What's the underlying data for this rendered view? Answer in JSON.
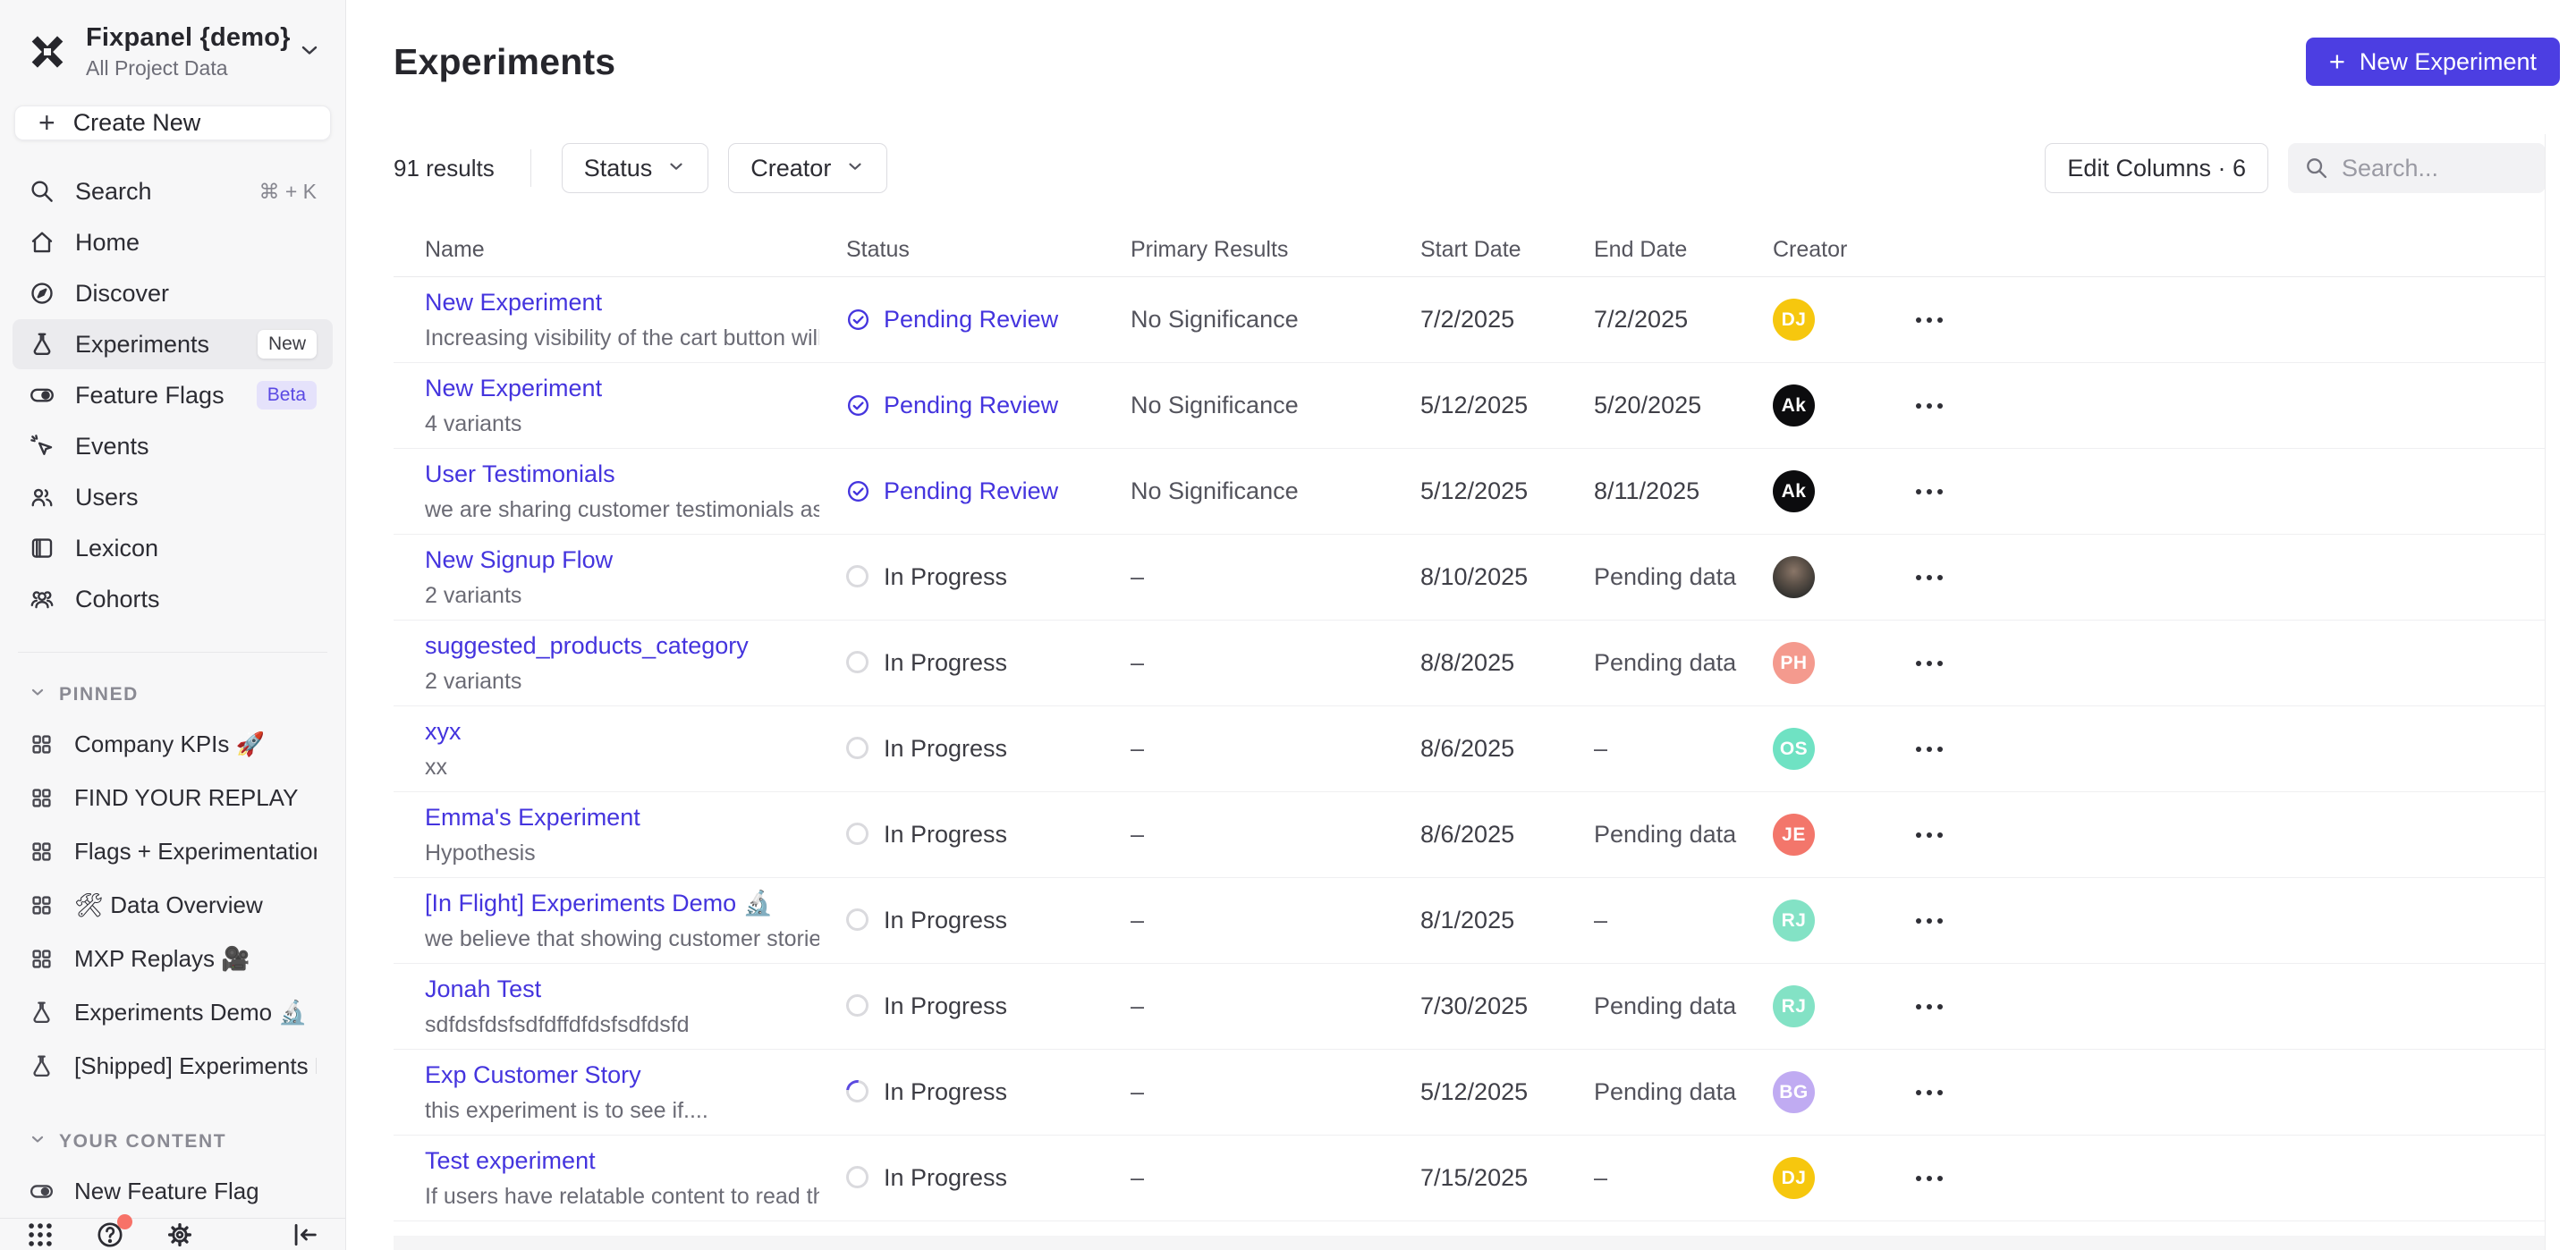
{
  "colors": {
    "accent": "#4c3ee2",
    "link": "#4434de",
    "beta_badge_bg": "#e5e2fb",
    "sidebar_bg": "#f7f7f8"
  },
  "workspace": {
    "name": "Fixpanel {demo}",
    "subtitle": "All Project Data"
  },
  "sidebar": {
    "create_new_label": "Create New",
    "nav": [
      {
        "label": "Search",
        "icon": "search",
        "shortcut": "⌘ + K"
      },
      {
        "label": "Home",
        "icon": "home"
      },
      {
        "label": "Discover",
        "icon": "discover"
      },
      {
        "label": "Experiments",
        "icon": "flask",
        "badge": "New",
        "active": true
      },
      {
        "label": "Feature Flags",
        "icon": "toggle",
        "badge": "Beta"
      },
      {
        "label": "Events",
        "icon": "events"
      },
      {
        "label": "Users",
        "icon": "users"
      },
      {
        "label": "Lexicon",
        "icon": "lexicon"
      },
      {
        "label": "Cohorts",
        "icon": "cohorts"
      }
    ],
    "pinned_header": "PINNED",
    "pinned": [
      {
        "label": "Company KPIs 🚀",
        "icon": "board"
      },
      {
        "label": "FIND YOUR REPLAY",
        "icon": "board"
      },
      {
        "label": "Flags + Experimentation Demo",
        "icon": "board"
      },
      {
        "label": "🛠 Data Overview",
        "icon": "board"
      },
      {
        "label": "MXP Replays 🎥",
        "icon": "board"
      },
      {
        "label": "Experiments Demo 🔬",
        "icon": "flask"
      },
      {
        "label": "[Shipped] Experiments Demo 🖊",
        "icon": "flask"
      }
    ],
    "your_content_header": "YOUR CONTENT",
    "your_content": [
      {
        "label": "New Feature Flag",
        "icon": "toggle"
      }
    ],
    "footer_icons": [
      "apps-grid",
      "help",
      "settings",
      "collapse-sidebar"
    ],
    "help_has_notification": true
  },
  "header": {
    "title": "Experiments",
    "new_button_label": "New Experiment"
  },
  "toolbar": {
    "results": "91 results",
    "filters": [
      "Status",
      "Creator"
    ],
    "edit_columns_label": "Edit Columns · 6",
    "search_placeholder": "Search..."
  },
  "table": {
    "columns": [
      "Name",
      "Status",
      "Primary Results",
      "Start Date",
      "End Date",
      "Creator"
    ],
    "rows": [
      {
        "name": "New Experiment",
        "desc": "Increasing visibility of the cart button will l...",
        "status": "Pending Review",
        "status_type": "review",
        "primary": "No Significance",
        "start": "7/2/2025",
        "end": "7/2/2025",
        "avatar": {
          "text": "DJ",
          "bg": "#f6c70e"
        }
      },
      {
        "name": "New Experiment",
        "desc": "4 variants",
        "status": "Pending Review",
        "status_type": "review",
        "primary": "No Significance",
        "start": "5/12/2025",
        "end": "5/20/2025",
        "avatar": {
          "text": "Ak",
          "bg": "#0c0c0e"
        }
      },
      {
        "name": "User Testimonials",
        "desc": "we are sharing customer testimonials as in...",
        "status": "Pending Review",
        "status_type": "review",
        "primary": "No Significance",
        "start": "5/12/2025",
        "end": "8/11/2025",
        "avatar": {
          "text": "Ak",
          "bg": "#0c0c0e"
        }
      },
      {
        "name": "New Signup Flow",
        "desc": "2 variants",
        "status": "In Progress",
        "status_type": "progress",
        "primary": "–",
        "start": "8/10/2025",
        "end": "Pending data",
        "avatar": {
          "photo": true
        }
      },
      {
        "name": "suggested_products_category",
        "desc": "2 variants",
        "status": "In Progress",
        "status_type": "progress",
        "primary": "–",
        "start": "8/8/2025",
        "end": "Pending data",
        "avatar": {
          "text": "PH",
          "bg": "#f49a8e"
        }
      },
      {
        "name": "xyx",
        "desc": "xx",
        "status": "In Progress",
        "status_type": "progress",
        "primary": "–",
        "start": "8/6/2025",
        "end": "–",
        "avatar": {
          "text": "OS",
          "bg": "#6fe2c3"
        }
      },
      {
        "name": "Emma's Experiment",
        "desc": "Hypothesis",
        "status": "In Progress",
        "status_type": "progress",
        "primary": "–",
        "start": "8/6/2025",
        "end": "Pending data",
        "avatar": {
          "text": "JE",
          "bg": "#f3766b"
        }
      },
      {
        "name": "[In Flight] Experiments Demo 🔬",
        "desc": "we believe that showing customer stories ...",
        "status": "In Progress",
        "status_type": "progress",
        "primary": "–",
        "start": "8/1/2025",
        "end": "–",
        "avatar": {
          "text": "RJ",
          "bg": "#83e2c5"
        }
      },
      {
        "name": "Jonah Test",
        "desc": "sdfdsfdsfsdfdffdfdsfsdfdsfd",
        "status": "In Progress",
        "status_type": "progress",
        "primary": "–",
        "start": "7/30/2025",
        "end": "Pending data",
        "avatar": {
          "text": "RJ",
          "bg": "#83e2c5"
        }
      },
      {
        "name": "Exp Customer Story",
        "desc": "this experiment is to see if....",
        "status": "In Progress",
        "status_type": "spinner",
        "primary": "–",
        "start": "5/12/2025",
        "end": "Pending data",
        "avatar": {
          "text": "BG",
          "bg": "#c0abf2"
        }
      },
      {
        "name": "Test experiment",
        "desc": "If users have relatable content to read they...",
        "status": "In Progress",
        "status_type": "progress",
        "primary": "–",
        "start": "7/15/2025",
        "end": "–",
        "avatar": {
          "text": "DJ",
          "bg": "#f6c70e"
        }
      }
    ]
  }
}
